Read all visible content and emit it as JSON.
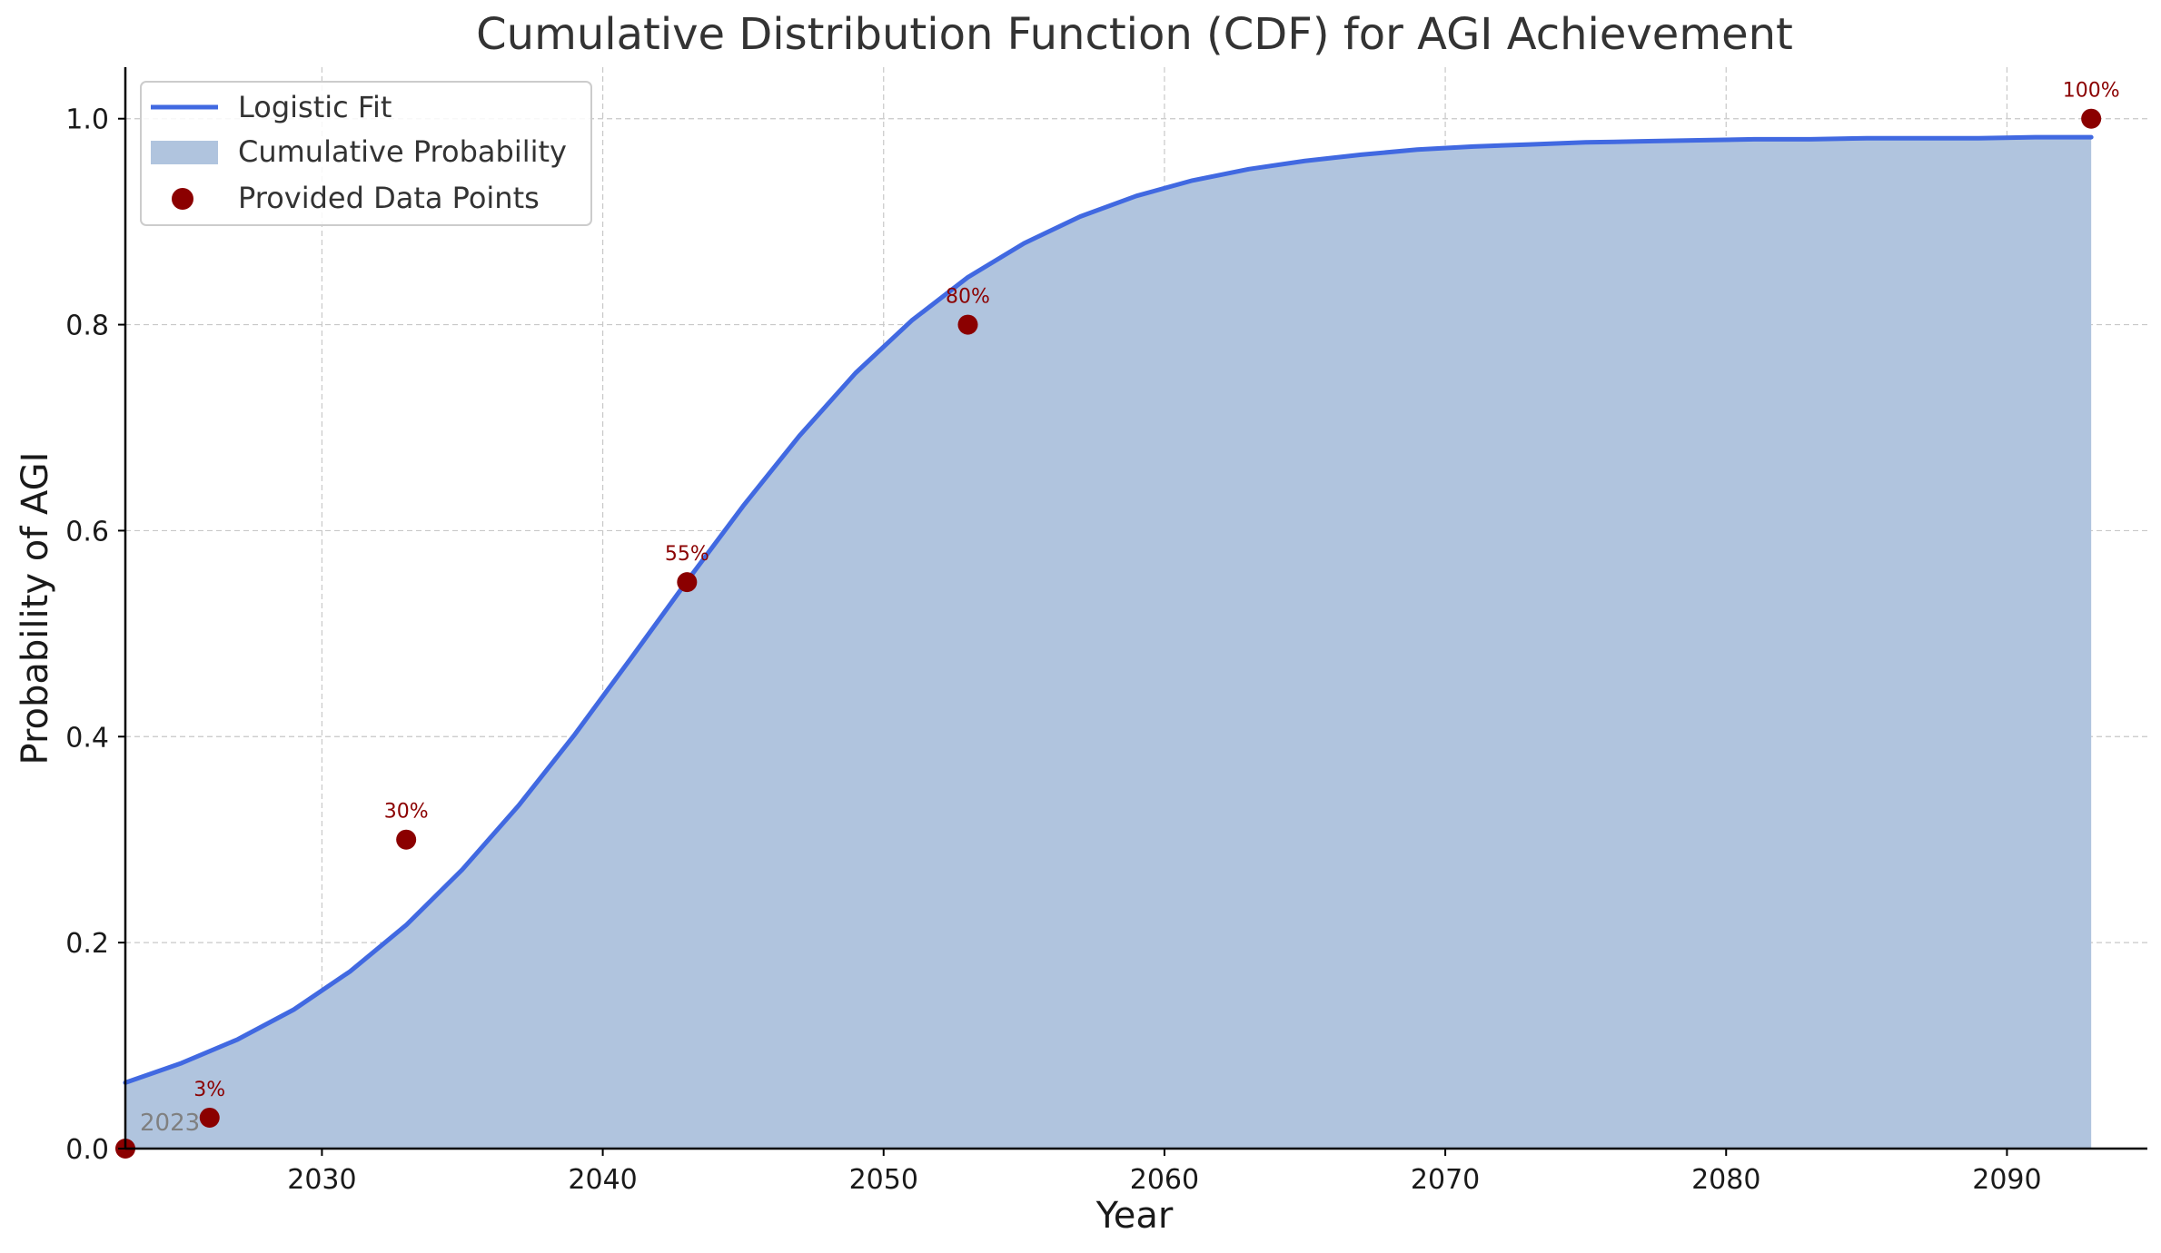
{
  "chart_data": {
    "type": "line",
    "title": "Cumulative Distribution Function (CDF) for AGI Achievement",
    "xlabel": "Year",
    "ylabel": "Probability of AGI",
    "xlim": [
      2023,
      2095
    ],
    "ylim": [
      0,
      1.05
    ],
    "xticks": [
      2030,
      2040,
      2050,
      2060,
      2070,
      2080,
      2090
    ],
    "yticks": [
      0.0,
      0.2,
      0.4,
      0.6,
      0.8,
      1.0
    ],
    "xtick_labels": [
      "2030",
      "2040",
      "2050",
      "2060",
      "2070",
      "2080",
      "2090"
    ],
    "ytick_labels": [
      "0.0",
      "0.2",
      "0.4",
      "0.6",
      "0.8",
      "1.0"
    ],
    "grid": true,
    "legend_position": "top-left",
    "series": [
      {
        "name": "Logistic Fit",
        "kind": "line",
        "color": "#4169e1",
        "x": [
          2023,
          2025,
          2027,
          2029,
          2031,
          2033,
          2035,
          2037,
          2039,
          2041,
          2043,
          2045,
          2047,
          2049,
          2051,
          2053,
          2055,
          2057,
          2059,
          2061,
          2063,
          2065,
          2067,
          2069,
          2071,
          2073,
          2075,
          2077,
          2079,
          2081,
          2083,
          2085,
          2087,
          2089,
          2091,
          2093
        ],
        "y": [
          0.064,
          0.083,
          0.106,
          0.135,
          0.172,
          0.217,
          0.271,
          0.333,
          0.402,
          0.476,
          0.551,
          0.624,
          0.692,
          0.753,
          0.804,
          0.846,
          0.879,
          0.905,
          0.925,
          0.94,
          0.951,
          0.959,
          0.965,
          0.97,
          0.973,
          0.975,
          0.977,
          0.978,
          0.979,
          0.98,
          0.98,
          0.981,
          0.981,
          0.981,
          0.982,
          0.982
        ]
      },
      {
        "name": "Cumulative Probability",
        "kind": "area",
        "color": "#b0c4de"
      },
      {
        "name": "Provided Data Points",
        "kind": "scatter",
        "color": "#8b0000",
        "x": [
          2023,
          2026,
          2033,
          2043,
          2053,
          2093
        ],
        "y": [
          0.0,
          0.03,
          0.3,
          0.55,
          0.8,
          1.0
        ],
        "labels": [
          "",
          "3%",
          "30%",
          "55%",
          "80%",
          "100%"
        ]
      }
    ],
    "annotations": [
      {
        "text": "2023",
        "x": 2023,
        "y": 0.0,
        "color": "#808080"
      }
    ]
  }
}
